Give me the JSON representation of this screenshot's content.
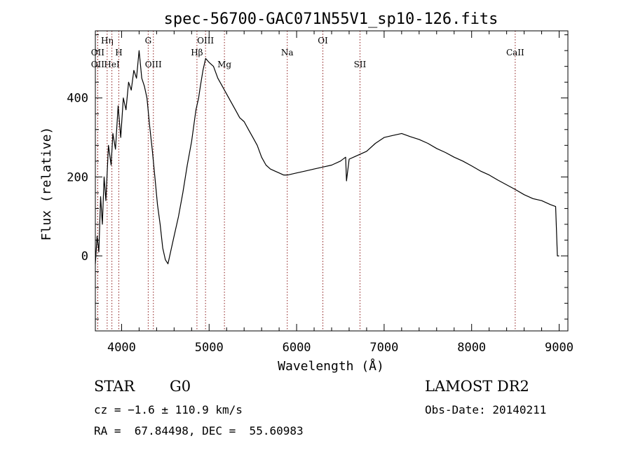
{
  "chart_data": {
    "type": "line",
    "title": "spec-56700-GAC071N55V1_sp10-126.fits",
    "xlabel": "Wavelength (Å)",
    "ylabel": "Flux (relative)",
    "xlim": [
      3700,
      9100
    ],
    "ylim": [
      -190,
      570
    ],
    "xticks": [
      4000,
      5000,
      6000,
      7000,
      8000,
      9000
    ],
    "yticks": [
      0,
      200,
      400
    ],
    "grid": false,
    "line_color": "#000000",
    "marker_color": "#8b1a1a",
    "lines": [
      {
        "label": "OII",
        "wavelength": 3727,
        "row": 2
      },
      {
        "label": "Hη",
        "wavelength": 3835,
        "row": 1
      },
      {
        "label": "OII",
        "wavelength": 3727,
        "row": 3
      },
      {
        "label": "HeI",
        "wavelength": 3889,
        "row": 3
      },
      {
        "label": "H",
        "wavelength": 3968,
        "row": 2
      },
      {
        "label": "G",
        "wavelength": 4304,
        "row": 1
      },
      {
        "label": "OIII",
        "wavelength": 4363,
        "row": 3
      },
      {
        "label": "Hβ",
        "wavelength": 4861,
        "row": 2
      },
      {
        "label": "OIII",
        "wavelength": 4959,
        "row": 1
      },
      {
        "label": "Mg",
        "wavelength": 5175,
        "row": 3
      },
      {
        "label": "Na",
        "wavelength": 5893,
        "row": 2
      },
      {
        "label": "OI",
        "wavelength": 6300,
        "row": 1
      },
      {
        "label": "SII",
        "wavelength": 6724,
        "row": 3
      },
      {
        "label": "CaII",
        "wavelength": 8498,
        "row": 2
      }
    ],
    "series": [
      {
        "x": [
          3700,
          3720,
          3740,
          3760,
          3780,
          3800,
          3820,
          3850,
          3880,
          3900,
          3930,
          3960,
          3990,
          4020,
          4050,
          4080,
          4110,
          4140,
          4170,
          4200,
          4230,
          4260,
          4290,
          4320,
          4350,
          4380,
          4410,
          4440,
          4470,
          4500,
          4530,
          4560,
          4600,
          4650,
          4700,
          4750,
          4800,
          4850,
          4880,
          4900,
          4930,
          4960,
          5000,
          5050,
          5100,
          5150,
          5200,
          5250,
          5300,
          5350,
          5400,
          5450,
          5500,
          5550,
          5600,
          5650,
          5700,
          5750,
          5800,
          5850,
          5900,
          6000,
          6100,
          6200,
          6300,
          6400,
          6500,
          6560,
          6570,
          6600,
          6700,
          6800,
          6900,
          7000,
          7100,
          7200,
          7300,
          7400,
          7500,
          7600,
          7700,
          7800,
          7900,
          8000,
          8100,
          8200,
          8300,
          8400,
          8500,
          8600,
          8700,
          8800,
          8900,
          8960,
          8980,
          9000
        ],
        "y": [
          -20,
          50,
          10,
          150,
          80,
          200,
          140,
          280,
          230,
          310,
          270,
          380,
          300,
          400,
          370,
          440,
          420,
          470,
          450,
          520,
          450,
          430,
          400,
          330,
          270,
          200,
          130,
          80,
          20,
          -10,
          -20,
          10,
          50,
          100,
          160,
          230,
          290,
          370,
          400,
          430,
          470,
          500,
          490,
          480,
          450,
          430,
          410,
          390,
          370,
          350,
          340,
          320,
          300,
          280,
          250,
          230,
          220,
          215,
          210,
          205,
          205,
          210,
          215,
          220,
          225,
          230,
          240,
          250,
          190,
          245,
          255,
          265,
          285,
          300,
          305,
          310,
          302,
          295,
          285,
          272,
          262,
          250,
          240,
          228,
          215,
          205,
          192,
          180,
          168,
          155,
          145,
          140,
          130,
          125,
          0,
          0
        ]
      }
    ]
  },
  "footer": {
    "object_type": "STAR",
    "subclass": "G0",
    "survey": "LAMOST DR2",
    "cz": "cz = −1.6 ± 110.9 km/s",
    "obs_date": "Obs-Date: 20140211",
    "coords": "RA =  67.84498, DEC =  55.60983"
  }
}
